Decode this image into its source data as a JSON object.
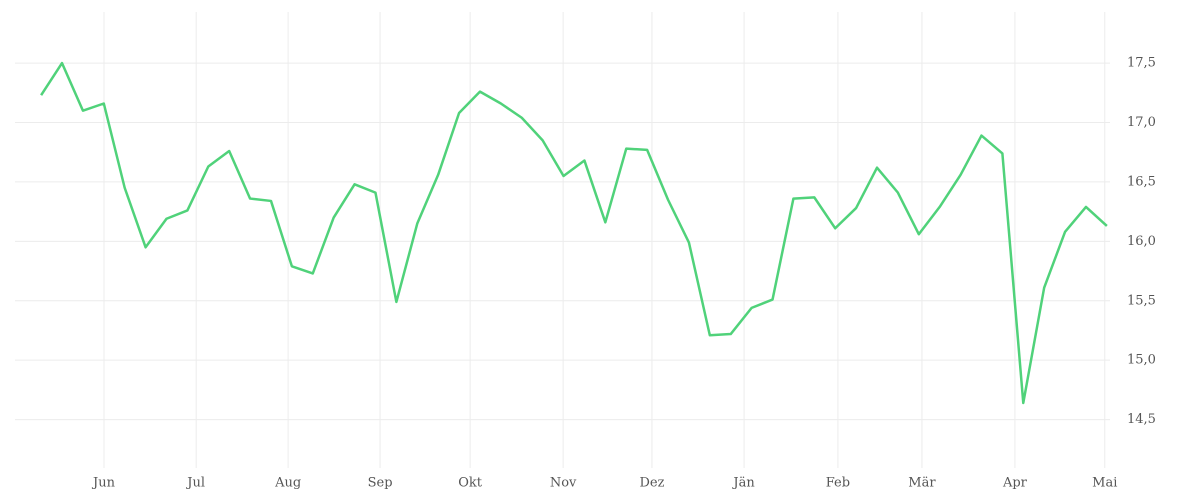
{
  "chart_data": {
    "type": "line",
    "x": [
      0,
      1,
      2,
      3,
      4,
      5,
      6,
      7,
      8,
      9,
      10,
      11,
      12,
      13,
      14,
      15,
      16,
      17,
      18,
      19,
      20,
      21,
      22,
      23,
      24,
      25,
      26,
      27,
      28,
      29,
      30,
      31,
      32,
      33,
      34,
      35,
      36,
      37,
      38,
      39,
      40,
      41,
      42,
      43,
      44,
      45,
      46,
      47,
      48,
      49,
      50,
      51
    ],
    "series": [
      {
        "color": "#50d27a",
        "values": [
          17.23,
          17.5,
          17.1,
          17.16,
          16.45,
          15.95,
          16.19,
          16.26,
          16.63,
          16.76,
          16.36,
          16.34,
          15.79,
          15.73,
          16.2,
          16.48,
          16.41,
          15.49,
          16.15,
          16.56,
          17.08,
          17.26,
          17.16,
          17.04,
          16.85,
          16.55,
          16.68,
          16.16,
          16.78,
          16.77,
          16.35,
          15.99,
          15.21,
          15.22,
          15.44,
          15.51,
          16.36,
          16.37,
          16.11,
          16.28,
          16.62,
          16.41,
          16.06,
          16.29,
          16.56,
          16.89,
          16.74,
          14.64,
          15.61,
          16.08,
          16.29,
          16.13
        ]
      }
    ],
    "xlim": [
      -1.25,
      51.15
    ],
    "xticks": [
      {
        "value": 3.01,
        "label": "Jun"
      },
      {
        "value": 7.42,
        "label": "Jul"
      },
      {
        "value": 11.82,
        "label": "Aug"
      },
      {
        "value": 16.22,
        "label": "Sep"
      },
      {
        "value": 20.53,
        "label": "Okt"
      },
      {
        "value": 24.98,
        "label": "Nov"
      },
      {
        "value": 29.23,
        "label": "Dez"
      },
      {
        "value": 33.64,
        "label": "Jän"
      },
      {
        "value": 38.13,
        "label": "Feb"
      },
      {
        "value": 42.15,
        "label": "Mär"
      },
      {
        "value": 46.6,
        "label": "Apr"
      },
      {
        "value": 50.9,
        "label": "Mai"
      }
    ],
    "ylim": [
      14.16,
      17.93
    ],
    "yticks": [
      {
        "value": 14.5,
        "label": "14,5"
      },
      {
        "value": 15,
        "label": "15,0"
      },
      {
        "value": 15.5,
        "label": "15,5"
      },
      {
        "value": 16,
        "label": "16,0"
      },
      {
        "value": 16.5,
        "label": "16,5"
      },
      {
        "value": 17,
        "label": "17,0"
      },
      {
        "value": 17.5,
        "label": "17,5"
      }
    ],
    "grid": true
  }
}
